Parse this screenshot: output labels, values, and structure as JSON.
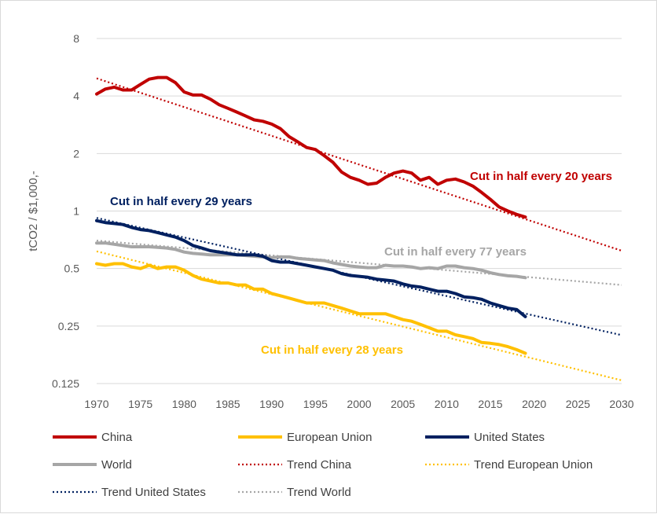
{
  "chart_data": {
    "type": "line",
    "title": "",
    "xlabel": "",
    "ylabel": "tCO2 / $1,000,-",
    "yscale": "log2",
    "ylim": [
      0.125,
      8
    ],
    "xlim": [
      1970,
      2030
    ],
    "x_ticks": [
      "1970",
      "1975",
      "1980",
      "1985",
      "1990",
      "1995",
      "2000",
      "2005",
      "2010",
      "2015",
      "2020",
      "2025",
      "2030"
    ],
    "y_ticks": [
      {
        "value": 8,
        "label": "8"
      },
      {
        "value": 4,
        "label": "4"
      },
      {
        "value": 2,
        "label": "2"
      },
      {
        "value": 1,
        "label": "1"
      },
      {
        "value": 0.5,
        "label": "0.5"
      },
      {
        "value": 0.25,
        "label": "0.25"
      },
      {
        "value": 0.125,
        "label": "0.125"
      }
    ],
    "grid": true,
    "series": [
      {
        "name": "China",
        "color": "#C00000",
        "style": "solid",
        "x": [
          1970,
          1971,
          1972,
          1973,
          1974,
          1975,
          1976,
          1977,
          1978,
          1979,
          1980,
          1981,
          1982,
          1983,
          1984,
          1985,
          1986,
          1987,
          1988,
          1989,
          1990,
          1991,
          1992,
          1993,
          1994,
          1995,
          1996,
          1997,
          1998,
          1999,
          2000,
          2001,
          2002,
          2003,
          2004,
          2005,
          2006,
          2007,
          2008,
          2009,
          2010,
          2011,
          2012,
          2013,
          2014,
          2015,
          2016,
          2017,
          2018,
          2019
        ],
        "values": [
          4.1,
          4.35,
          4.45,
          4.3,
          4.3,
          4.6,
          4.9,
          5.0,
          5.0,
          4.7,
          4.2,
          4.05,
          4.05,
          3.85,
          3.6,
          3.45,
          3.3,
          3.15,
          3.0,
          2.95,
          2.85,
          2.7,
          2.45,
          2.3,
          2.15,
          2.1,
          1.95,
          1.8,
          1.6,
          1.5,
          1.45,
          1.38,
          1.4,
          1.5,
          1.58,
          1.62,
          1.58,
          1.45,
          1.5,
          1.38,
          1.45,
          1.47,
          1.42,
          1.35,
          1.25,
          1.15,
          1.05,
          1.0,
          0.96,
          0.93
        ]
      },
      {
        "name": "European Union",
        "color": "#FFC000",
        "style": "solid",
        "x": [
          1970,
          1971,
          1972,
          1973,
          1974,
          1975,
          1976,
          1977,
          1978,
          1979,
          1980,
          1981,
          1982,
          1983,
          1984,
          1985,
          1986,
          1987,
          1988,
          1989,
          1990,
          1991,
          1992,
          1993,
          1994,
          1995,
          1996,
          1997,
          1998,
          1999,
          2000,
          2001,
          2002,
          2003,
          2004,
          2005,
          2006,
          2007,
          2008,
          2009,
          2010,
          2011,
          2012,
          2013,
          2014,
          2015,
          2016,
          2017,
          2018,
          2019
        ],
        "values": [
          0.53,
          0.52,
          0.53,
          0.53,
          0.51,
          0.5,
          0.52,
          0.5,
          0.51,
          0.51,
          0.49,
          0.46,
          0.44,
          0.43,
          0.42,
          0.42,
          0.41,
          0.41,
          0.39,
          0.39,
          0.37,
          0.36,
          0.35,
          0.34,
          0.33,
          0.33,
          0.33,
          0.32,
          0.31,
          0.3,
          0.29,
          0.29,
          0.29,
          0.29,
          0.28,
          0.27,
          0.265,
          0.255,
          0.245,
          0.235,
          0.235,
          0.225,
          0.22,
          0.215,
          0.205,
          0.203,
          0.2,
          0.195,
          0.188,
          0.18
        ]
      },
      {
        "name": "United States",
        "color": "#002060",
        "style": "solid",
        "x": [
          1970,
          1971,
          1972,
          1973,
          1974,
          1975,
          1976,
          1977,
          1978,
          1979,
          1980,
          1981,
          1982,
          1983,
          1984,
          1985,
          1986,
          1987,
          1988,
          1989,
          1990,
          1991,
          1992,
          1993,
          1994,
          1995,
          1996,
          1997,
          1998,
          1999,
          2000,
          2001,
          2002,
          2003,
          2004,
          2005,
          2006,
          2007,
          2008,
          2009,
          2010,
          2011,
          2012,
          2013,
          2014,
          2015,
          2016,
          2017,
          2018,
          2019
        ],
        "values": [
          0.89,
          0.87,
          0.86,
          0.85,
          0.82,
          0.8,
          0.79,
          0.77,
          0.75,
          0.73,
          0.7,
          0.66,
          0.64,
          0.62,
          0.61,
          0.6,
          0.59,
          0.59,
          0.59,
          0.58,
          0.55,
          0.54,
          0.54,
          0.53,
          0.52,
          0.51,
          0.5,
          0.49,
          0.47,
          0.46,
          0.455,
          0.45,
          0.44,
          0.435,
          0.43,
          0.415,
          0.405,
          0.4,
          0.39,
          0.38,
          0.38,
          0.37,
          0.355,
          0.352,
          0.345,
          0.33,
          0.32,
          0.31,
          0.305,
          0.28
        ]
      },
      {
        "name": "World",
        "color": "#A6A6A6",
        "style": "solid",
        "x": [
          1970,
          1971,
          1972,
          1973,
          1974,
          1975,
          1976,
          1977,
          1978,
          1979,
          1980,
          1981,
          1982,
          1983,
          1984,
          1985,
          1986,
          1987,
          1988,
          1989,
          1990,
          1991,
          1992,
          1993,
          1994,
          1995,
          1996,
          1997,
          1998,
          1999,
          2000,
          2001,
          2002,
          2003,
          2004,
          2005,
          2006,
          2007,
          2008,
          2009,
          2010,
          2011,
          2012,
          2013,
          2014,
          2015,
          2016,
          2017,
          2018,
          2019
        ],
        "values": [
          0.68,
          0.68,
          0.67,
          0.66,
          0.65,
          0.65,
          0.65,
          0.645,
          0.64,
          0.63,
          0.61,
          0.6,
          0.595,
          0.59,
          0.59,
          0.59,
          0.59,
          0.585,
          0.58,
          0.575,
          0.57,
          0.575,
          0.575,
          0.565,
          0.56,
          0.555,
          0.55,
          0.535,
          0.525,
          0.515,
          0.51,
          0.505,
          0.505,
          0.52,
          0.515,
          0.515,
          0.51,
          0.5,
          0.505,
          0.5,
          0.515,
          0.515,
          0.505,
          0.5,
          0.49,
          0.475,
          0.465,
          0.458,
          0.455,
          0.448
        ]
      },
      {
        "name": "Trend China",
        "color": "#C00000",
        "style": "dotted",
        "x": [
          1970,
          2030
        ],
        "values": [
          4.95,
          0.62
        ]
      },
      {
        "name": "Trend European Union",
        "color": "#FFC000",
        "style": "dotted",
        "x": [
          1970,
          2030
        ],
        "values": [
          0.615,
          0.13
        ]
      },
      {
        "name": "Trend United States",
        "color": "#002060",
        "style": "dotted",
        "x": [
          1970,
          2030
        ],
        "values": [
          0.92,
          0.224
        ]
      },
      {
        "name": "Trend World",
        "color": "#A6A6A6",
        "style": "dotted",
        "x": [
          1970,
          2030
        ],
        "values": [
          0.7,
          0.41
        ]
      }
    ],
    "annotations": [
      {
        "text": "Cut in half every 20 years",
        "color": "#C00000"
      },
      {
        "text": "Cut in half every 29 years",
        "color": "#002060"
      },
      {
        "text": "Cut in half every 77 years",
        "color": "#A6A6A6"
      },
      {
        "text": "Cut in half every 28 years",
        "color": "#FFC000"
      }
    ],
    "legend": {
      "placement": "bottom",
      "entries": [
        "China",
        "European Union",
        "United States",
        "World",
        "Trend China",
        "Trend European Union",
        "Trend United States",
        "Trend World"
      ]
    }
  }
}
